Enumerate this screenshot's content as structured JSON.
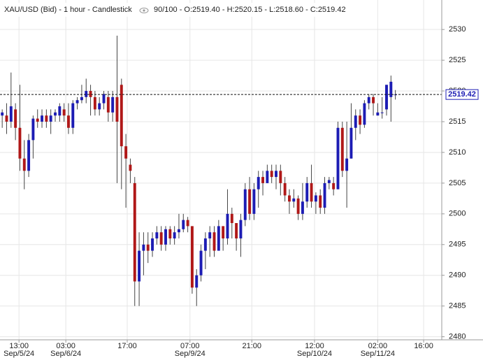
{
  "chart_data": {
    "type": "candlestick",
    "title": "XAU/USD (Bid) - 1 hour - Candlestick",
    "status": "90/100 - O:2519.40 - H:2520.15 - L:2518.60 - C:2519.42",
    "up_color": "#1c1cb4",
    "down_color": "#b01818",
    "wick_color": "#444444",
    "grid": true,
    "xlim": [
      -0.5,
      99.5
    ],
    "ylim": [
      2479.5,
      2534.8
    ],
    "yticks": [
      2480,
      2485,
      2490,
      2495,
      2500,
      2505,
      2510,
      2515,
      2520,
      2525,
      2530
    ],
    "xticks": [
      {
        "value": 3.8,
        "label": "13:00",
        "date": "Sep/5/24"
      },
      {
        "value": 14.4,
        "label": "03:00",
        "date": "Sep/6/24"
      },
      {
        "value": 28.3,
        "label": "17:00"
      },
      {
        "value": 42.5,
        "label": "07:00",
        "date": "Sep/9/24"
      },
      {
        "value": 56.5,
        "label": "21:00"
      },
      {
        "value": 70.7,
        "label": "12:00",
        "date": "Sep/10/24"
      },
      {
        "value": 85,
        "label": "02:00",
        "date": "Sep/11/24"
      },
      {
        "value": 95.4,
        "label": "16:00"
      }
    ],
    "candles": {
      "open": [
        2516,
        2516,
        2515,
        2517,
        2514,
        2509,
        2507,
        2512,
        2515.5,
        2515,
        2516,
        2515,
        2516,
        2516,
        2517,
        2516,
        2514,
        2518,
        2518.5,
        2519,
        2520,
        2519,
        2517,
        2518,
        2519,
        2516.5,
        2519,
        2521,
        2511,
        2508,
        2505,
        2489,
        2494,
        2495,
        2494,
        2496,
        2497,
        2495,
        2497.5,
        2496,
        2497,
        2497.5,
        2499,
        2498,
        2488,
        2490,
        2494,
        2496,
        2497,
        2494,
        2498,
        2496,
        2500,
        2498.5,
        2496,
        2499,
        2504,
        2500,
        2504,
        2506,
        2505,
        2507,
        2506,
        2507,
        2505,
        2503,
        2502,
        2502.5,
        2500,
        2502,
        2505,
        2502,
        2503,
        2501,
        2505,
        2505,
        2504,
        2514,
        2507,
        2509,
        2514,
        2516,
        2514.5,
        2518,
        2519,
        2516,
        2516.5,
        2517,
        2519,
        2519.4
      ],
      "high": [
        2517,
        2518,
        2523,
        2518,
        2521,
        2512,
        2513,
        2516,
        2517,
        2517,
        2517,
        2517,
        2517,
        2518,
        2518,
        2518,
        2518.5,
        2519,
        2521,
        2522,
        2521,
        2520,
        2519,
        2520,
        2520,
        2520,
        2529,
        2522,
        2513,
        2509,
        2506,
        2497,
        2497,
        2497,
        2497,
        2498,
        2498,
        2498,
        2498,
        2498,
        2500,
        2500,
        2499.5,
        2498,
        2491,
        2495,
        2497,
        2498,
        2498,
        2499,
        2498,
        2504,
        2501,
        2498.5,
        2500,
        2505,
        2506,
        2505,
        2507,
        2507,
        2508,
        2508,
        2508,
        2508,
        2506,
        2504,
        2504,
        2503,
        2505,
        2506,
        2508,
        2503.5,
        2504,
        2506,
        2506,
        2506,
        2515,
        2515,
        2515,
        2518,
        2517,
        2517,
        2518.5,
        2519.5,
        2519.5,
        2518,
        2519,
        2521,
        2522.5,
        2520.15
      ],
      "low": [
        2514,
        2513,
        2514,
        2512,
        2507,
        2504,
        2506,
        2509,
        2514,
        2514,
        2514,
        2513,
        2515,
        2515,
        2515,
        2513,
        2513,
        2517,
        2518,
        2518,
        2516,
        2516,
        2516,
        2517,
        2515,
        2515,
        2505,
        2504,
        2501,
        2505,
        2485,
        2485,
        2490,
        2492,
        2493,
        2495,
        2494,
        2494,
        2495,
        2495,
        2496,
        2497,
        2497,
        2487,
        2485,
        2489,
        2491,
        2493,
        2493,
        2494,
        2494,
        2495,
        2496,
        2494,
        2493,
        2498,
        2499,
        2499,
        2501,
        2503,
        2505,
        2505,
        2504,
        2503,
        2502,
        2500,
        2501,
        2499,
        2499,
        2501,
        2501,
        2500,
        2500,
        2500,
        2504,
        2503,
        2504,
        2506,
        2501,
        2509,
        2512,
        2513,
        2514,
        2517,
        2516,
        2516,
        2515.5,
        2516,
        2515,
        2518.6
      ],
      "close": [
        2516.5,
        2515,
        2517.5,
        2514,
        2509,
        2507,
        2512,
        2515.5,
        2515,
        2516,
        2515,
        2516,
        2516.5,
        2517.5,
        2516,
        2514,
        2518,
        2518.5,
        2519,
        2520,
        2519,
        2517,
        2518,
        2519.5,
        2516.5,
        2519,
        2515,
        2511,
        2509,
        2507,
        2489,
        2494,
        2495,
        2494,
        2496,
        2497,
        2495,
        2497.5,
        2496,
        2497,
        2497.5,
        2499,
        2498,
        2488,
        2490,
        2494,
        2496,
        2497,
        2494,
        2498,
        2496,
        2500,
        2498.5,
        2496,
        2499,
        2504,
        2500,
        2504,
        2506,
        2505,
        2507,
        2506,
        2507,
        2505,
        2503,
        2502,
        2502.5,
        2500,
        2502,
        2505,
        2502,
        2503,
        2501,
        2505,
        2505.5,
        2504,
        2514,
        2507,
        2509,
        2514,
        2516,
        2514.5,
        2518,
        2519,
        2518,
        2516.5,
        2516.5,
        2521,
        2521.5,
        2519.42
      ]
    }
  }
}
